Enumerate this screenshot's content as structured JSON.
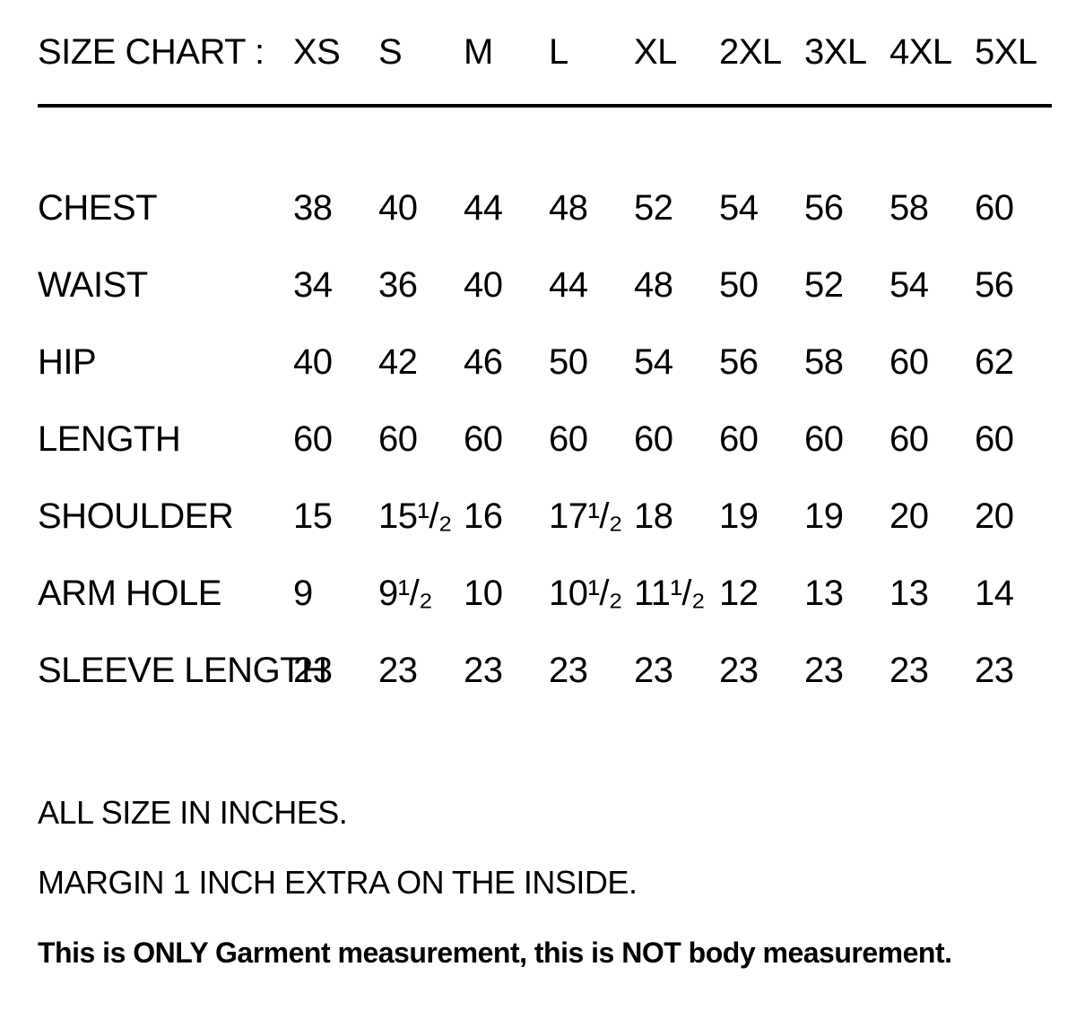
{
  "styles": {
    "text_color": "#000000",
    "background_color": "#ffffff",
    "divider_color": "#000000"
  },
  "chart_data": {
    "type": "table",
    "title": "SIZE CHART :",
    "units_note": "ALL SIZE IN INCHES.",
    "size_headers": [
      "XS",
      "S",
      "M",
      "L",
      "XL",
      "2XL",
      "3XL",
      "4XL",
      "5XL"
    ],
    "rows": [
      {
        "label": "CHEST",
        "values": [
          "38",
          "40",
          "44",
          "48",
          "52",
          "54",
          "56",
          "58",
          "60"
        ]
      },
      {
        "label": "WAIST",
        "values": [
          "34",
          "36",
          "40",
          "44",
          "48",
          "50",
          "52",
          "54",
          "56"
        ]
      },
      {
        "label": "HIP",
        "values": [
          "40",
          "42",
          "46",
          "50",
          "54",
          "56",
          "58",
          "60",
          "62"
        ]
      },
      {
        "label": "LENGTH",
        "values": [
          "60",
          "60",
          "60",
          "60",
          "60",
          "60",
          "60",
          "60",
          "60"
        ]
      },
      {
        "label": "SHOULDER",
        "values": [
          "15",
          "15¹/₂",
          "16",
          "17¹/₂",
          "18",
          "19",
          "19",
          "20",
          "20"
        ]
      },
      {
        "label": "ARM HOLE",
        "values": [
          "9",
          "9¹/₂",
          "10",
          "10¹/₂",
          "11¹/₂",
          "12",
          "13",
          "13",
          "14"
        ]
      },
      {
        "label": "SLEEVE LENGTH",
        "values": [
          "23",
          "23",
          "23",
          "23",
          "23",
          "23",
          "23",
          "23",
          "23"
        ]
      }
    ],
    "footnotes": [
      "ALL SIZE IN INCHES.",
      "MARGIN 1 INCH EXTRA ON THE INSIDE.",
      "This is ONLY Garment measurement, this is NOT body measurement."
    ]
  }
}
